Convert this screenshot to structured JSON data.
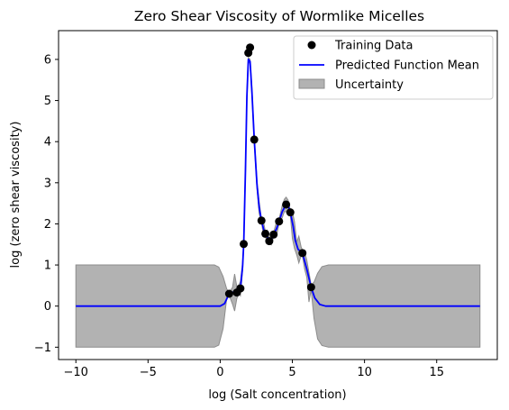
{
  "chart_data": {
    "type": "line",
    "title": "Zero Shear Viscosity of Wormlike Micelles",
    "xlabel": "log (Salt concentration)",
    "ylabel": "log (zero shear viscosity)",
    "xlim": [
      -11.2,
      19.2
    ],
    "ylim": [
      -1.3,
      6.7
    ],
    "xticks": [
      -10,
      -5,
      0,
      5,
      10,
      15
    ],
    "yticks": [
      -1,
      0,
      1,
      2,
      3,
      4,
      5,
      6
    ],
    "legend": {
      "placement": "top-right",
      "entries": [
        "Training Data",
        "Predicted Function Mean",
        "Uncertainty"
      ]
    },
    "colors": {
      "data": "#000000",
      "mean": "#0000ff",
      "band_fill": "#b2b2b2",
      "band_edge": "#8c8c8c"
    },
    "series": [
      {
        "name": "Training Data",
        "kind": "scatter",
        "x": [
          0.62,
          1.15,
          1.4,
          1.63,
          1.95,
          2.07,
          2.36,
          2.86,
          3.13,
          3.4,
          3.7,
          4.08,
          4.57,
          4.86,
          5.7,
          6.3
        ],
        "y": [
          0.3,
          0.33,
          0.43,
          1.51,
          6.16,
          6.29,
          4.05,
          2.08,
          1.76,
          1.58,
          1.74,
          2.06,
          2.47,
          2.28,
          1.29,
          0.46
        ]
      },
      {
        "name": "Predicted Function Mean",
        "kind": "line",
        "x": [
          -10,
          0.0,
          0.3,
          0.62,
          0.9,
          1.15,
          1.4,
          1.55,
          1.63,
          1.75,
          1.85,
          1.95,
          2.07,
          2.2,
          2.36,
          2.55,
          2.7,
          2.86,
          3.0,
          3.13,
          3.26,
          3.4,
          3.55,
          3.7,
          3.9,
          4.08,
          4.3,
          4.57,
          4.7,
          4.86,
          5.05,
          5.2,
          5.4,
          5.7,
          6.0,
          6.3,
          6.55,
          6.9,
          7.3,
          8.0,
          18
        ],
        "y": [
          0.0,
          0.0,
          0.06,
          0.3,
          0.34,
          0.33,
          0.43,
          0.95,
          1.51,
          3.3,
          5.1,
          6.0,
          5.95,
          5.2,
          4.05,
          2.95,
          2.4,
          2.08,
          1.88,
          1.76,
          1.68,
          1.58,
          1.62,
          1.74,
          1.88,
          2.06,
          2.3,
          2.47,
          2.45,
          2.28,
          1.95,
          1.6,
          1.38,
          1.29,
          0.9,
          0.46,
          0.2,
          0.04,
          0.0,
          0.0,
          0.0
        ]
      },
      {
        "name": "Uncertainty",
        "kind": "band",
        "x": [
          -10,
          -0.4,
          -0.1,
          0.2,
          0.45,
          0.62,
          0.85,
          1.0,
          1.15,
          1.3,
          1.4,
          1.55,
          1.63,
          1.75,
          1.85,
          1.95,
          2.07,
          2.2,
          2.36,
          2.55,
          2.7,
          2.86,
          3.0,
          3.13,
          3.26,
          3.4,
          3.55,
          3.7,
          3.9,
          4.08,
          4.3,
          4.45,
          4.57,
          4.7,
          4.86,
          5.0,
          5.15,
          5.3,
          5.45,
          5.6,
          5.7,
          5.85,
          6.0,
          6.15,
          6.3,
          6.5,
          6.75,
          7.05,
          7.5,
          18
        ],
        "upper": [
          1.0,
          1.0,
          0.95,
          0.72,
          0.42,
          0.34,
          0.45,
          0.78,
          0.48,
          0.52,
          0.6,
          1.05,
          1.56,
          3.4,
          5.2,
          6.05,
          6.0,
          5.3,
          4.12,
          3.05,
          2.55,
          2.12,
          2.05,
          1.82,
          1.85,
          1.64,
          1.75,
          1.79,
          2.05,
          2.12,
          2.45,
          2.6,
          2.65,
          2.58,
          2.34,
          2.3,
          2.05,
          1.55,
          1.7,
          1.45,
          1.36,
          1.32,
          1.12,
          0.82,
          0.52,
          0.58,
          0.8,
          0.96,
          1.0,
          1.0
        ],
        "lower": [
          -1.0,
          -1.0,
          -0.95,
          -0.55,
          0.18,
          0.26,
          0.05,
          -0.12,
          0.18,
          0.3,
          0.25,
          0.85,
          1.46,
          3.2,
          5.0,
          5.95,
          5.9,
          5.1,
          3.98,
          2.85,
          2.25,
          2.04,
          1.71,
          1.7,
          1.51,
          1.52,
          1.49,
          1.69,
          1.71,
          2.0,
          2.15,
          2.3,
          2.29,
          2.32,
          2.22,
          1.65,
          1.4,
          1.25,
          1.05,
          1.22,
          1.22,
          0.9,
          0.7,
          0.1,
          0.4,
          -0.3,
          -0.8,
          -0.96,
          -1.0,
          -1.0
        ]
      }
    ]
  }
}
